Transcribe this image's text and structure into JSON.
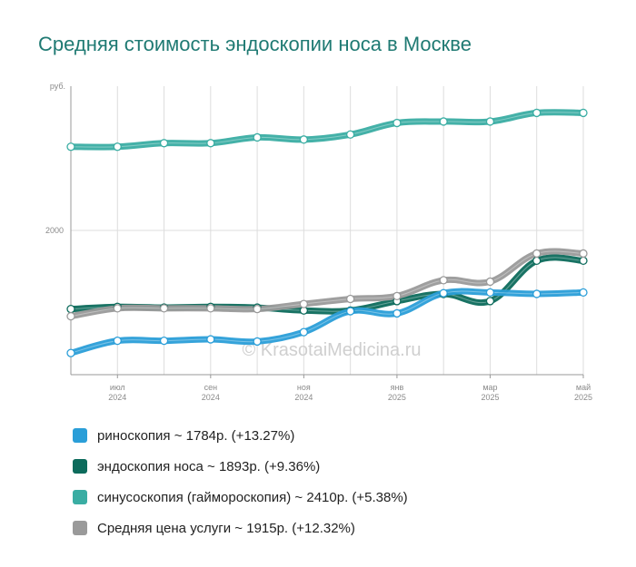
{
  "title": "Средняя стоимость эндоскопии носа в Москве",
  "watermark": "© KrasotaiMedicina.ru",
  "chart_data": {
    "type": "line",
    "title": "Средняя стоимость эндоскопии носа в Москве",
    "ylabel": "руб.",
    "y_ticks": [
      2000
    ],
    "ylim": [
      1000,
      3000
    ],
    "grid": true,
    "x_tick_labels": [
      {
        "month": "июл",
        "year": "2024",
        "index": 1
      },
      {
        "month": "сен",
        "year": "2024",
        "index": 3
      },
      {
        "month": "ноя",
        "year": "2024",
        "index": 5
      },
      {
        "month": "янв",
        "year": "2025",
        "index": 7
      },
      {
        "month": "мар",
        "year": "2025",
        "index": 9
      },
      {
        "month": "май",
        "year": "2025",
        "index": 11
      }
    ],
    "x": [
      "июн 2024",
      "июл 2024",
      "авг 2024",
      "сен 2024",
      "окт 2024",
      "ноя 2024",
      "дек 2024",
      "янв 2025",
      "фев 2025",
      "мар 2025",
      "апр 2025",
      "май 2025"
    ],
    "series": [
      {
        "name": "синусоскопия (гаймороскопия)",
        "color": "#3aada3",
        "values": [
          2580,
          2580,
          2605,
          2605,
          2645,
          2630,
          2665,
          2745,
          2755,
          2755,
          2815,
          2815
        ]
      },
      {
        "name": "эндоскопия носа",
        "color": "#0d6b5c",
        "values": [
          1455,
          1470,
          1465,
          1470,
          1465,
          1445,
          1445,
          1510,
          1560,
          1510,
          1790,
          1790
        ]
      },
      {
        "name": "Средняя цена услуги",
        "color": "#9a9a9a",
        "values": [
          1405,
          1460,
          1460,
          1460,
          1455,
          1490,
          1525,
          1545,
          1655,
          1645,
          1840,
          1840
        ]
      },
      {
        "name": "риноскопия",
        "color": "#2a9ed8",
        "values": [
          1150,
          1235,
          1235,
          1245,
          1230,
          1295,
          1440,
          1425,
          1565,
          1570,
          1560,
          1570
        ]
      }
    ]
  },
  "legend": [
    {
      "text": "риноскопия ~ 1784р. (+13.27%)",
      "color": "#2a9ed8"
    },
    {
      "text": "эндоскопия носа ~ 1893р. (+9.36%)",
      "color": "#0d6b5c"
    },
    {
      "text": "синусоскопия (гайморoскопия) ~ 2410р. (+5.38%)",
      "color": "#3aada3"
    },
    {
      "text": "Средняя цена услуги ~ 1915р. (+12.32%)",
      "color": "#9a9a9a"
    }
  ]
}
